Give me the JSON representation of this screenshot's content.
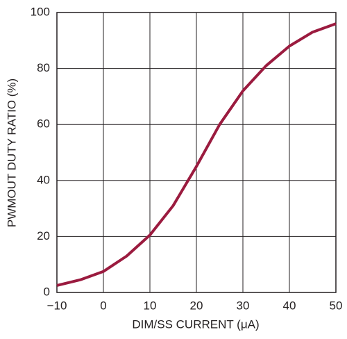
{
  "chart_data": {
    "type": "line",
    "x_label": "DIM/SS CURRENT (μA)",
    "y_label": "PWMOUT DUTY RATIO (%)",
    "x": [
      -10,
      -5,
      0,
      5,
      10,
      15,
      20,
      25,
      30,
      35,
      40,
      45,
      50
    ],
    "series": [
      {
        "name": "duty",
        "color": "#9b1b3f",
        "values": [
          2.5,
          4.5,
          7.5,
          13,
          20.5,
          31,
          45,
          60,
          72,
          81,
          88,
          93,
          96
        ]
      }
    ],
    "xlim": [
      -10,
      50
    ],
    "xticks": [
      {
        "value": -10,
        "label": "−10"
      },
      0,
      10,
      20,
      30,
      40,
      50
    ],
    "ylim": [
      0,
      100
    ],
    "yticks": [
      0,
      20,
      40,
      60,
      80,
      100
    ],
    "grid": true
  }
}
